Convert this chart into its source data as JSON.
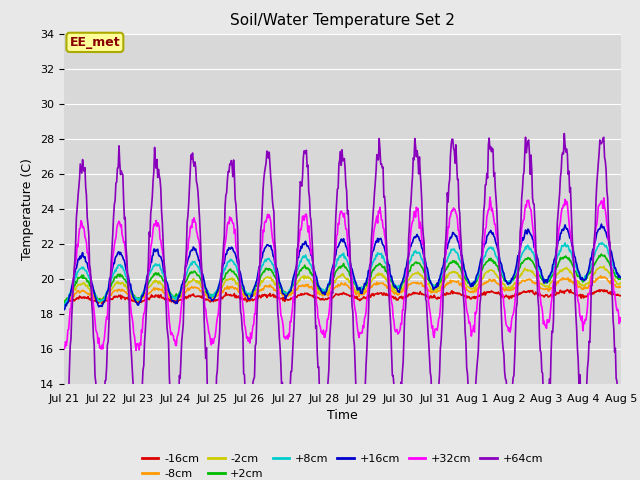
{
  "title": "Soil/Water Temperature Set 2",
  "xlabel": "Time",
  "ylabel": "Temperature (C)",
  "ylim": [
    14,
    34
  ],
  "yticks": [
    14,
    16,
    18,
    20,
    22,
    24,
    26,
    28,
    30,
    32,
    34
  ],
  "fig_bg_color": "#e8e8e8",
  "plot_bg_color": "#d8d8d8",
  "annotation_text": "EE_met",
  "annotation_bg": "#ffff99",
  "annotation_border": "#aaaa00",
  "annotation_text_color": "#880000",
  "series": [
    {
      "label": "-16cm",
      "color": "#dd0000",
      "base": 18.8,
      "amp": 0.15,
      "trend": 0.4,
      "phase": 1.5
    },
    {
      "label": "-8cm",
      "color": "#ff9900",
      "base": 19.0,
      "amp": 0.3,
      "trend": 0.8,
      "phase": 1.5
    },
    {
      "label": "-2cm",
      "color": "#cccc00",
      "base": 19.2,
      "amp": 0.5,
      "trend": 1.0,
      "phase": 1.5
    },
    {
      "label": "+2cm",
      "color": "#00bb00",
      "base": 19.4,
      "amp": 0.7,
      "trend": 1.3,
      "phase": 1.5
    },
    {
      "label": "+8cm",
      "color": "#00cccc",
      "base": 19.6,
      "amp": 1.0,
      "trend": 1.5,
      "phase": 1.5
    },
    {
      "label": "+16cm",
      "color": "#0000cc",
      "base": 19.8,
      "amp": 1.5,
      "trend": 1.8,
      "phase": 1.5
    },
    {
      "label": "+32cm",
      "color": "#ff00ff",
      "base": 19.5,
      "amp": 3.5,
      "trend": 1.5,
      "phase": 1.5
    },
    {
      "label": "+64cm",
      "color": "#8800bb",
      "base": 19.0,
      "amp": 7.5,
      "trend": 1.5,
      "phase": 1.5
    }
  ],
  "x_tick_labels": [
    "Jul 21",
    "Jul 22",
    "Jul 23",
    "Jul 24",
    "Jul 25",
    "Jul 26",
    "Jul 27",
    "Jul 28",
    "Jul 29",
    "Jul 30",
    "Jul 31",
    "Aug 1",
    "Aug 2",
    "Aug 3",
    "Aug 4",
    "Aug 5"
  ],
  "num_days": 15,
  "points_per_day": 48,
  "grid_color": "#c0c0c0",
  "title_fontsize": 11,
  "label_fontsize": 9,
  "tick_fontsize": 8,
  "legend_fontsize": 8
}
